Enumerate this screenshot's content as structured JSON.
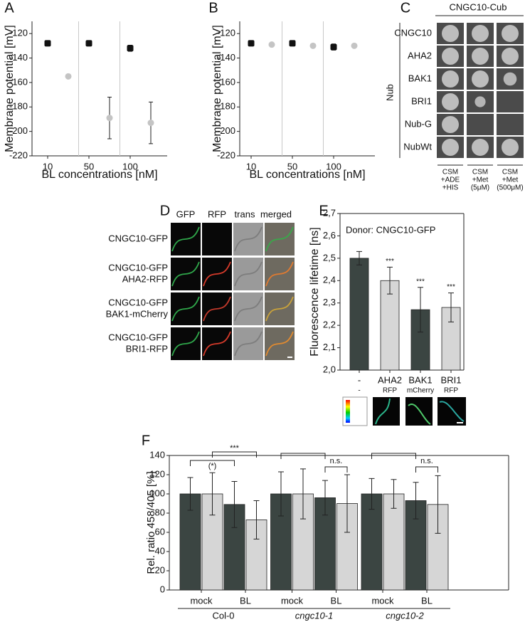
{
  "chart_data": [
    {
      "panel": "A",
      "type": "scatter",
      "ylabel": "Membrane potential [mV]",
      "xlabel": "BL concentrations [nM]",
      "categories": [
        "10",
        null,
        "50",
        null,
        "100",
        null
      ],
      "series": [
        {
          "color": "#111111",
          "values": [
            -128,
            null,
            -128,
            null,
            -132,
            null
          ],
          "errors": [
            1.5,
            null,
            1.5,
            null,
            2.5,
            null
          ]
        },
        {
          "color": "#c4c4c4",
          "values": [
            null,
            -155,
            null,
            -189,
            null,
            -193
          ],
          "errors": [
            null,
            1.5,
            null,
            17,
            null,
            17
          ]
        }
      ],
      "ylim": [
        -220,
        -110
      ],
      "yticks": [
        -120,
        -140,
        -160,
        -180,
        -200,
        -220
      ]
    },
    {
      "panel": "B",
      "type": "scatter",
      "ylabel": "Membrane potential [mV]",
      "xlabel": "BL concentrations [nM]",
      "categories": [
        "10",
        null,
        "50",
        null,
        "100",
        null
      ],
      "series": [
        {
          "color": "#111111",
          "values": [
            -128,
            null,
            -128,
            null,
            -131,
            null
          ],
          "errors": [
            1.5,
            null,
            1.5,
            null,
            2.5,
            null
          ]
        },
        {
          "color": "#c4c4c4",
          "values": [
            null,
            -129,
            null,
            -130,
            null,
            -130
          ],
          "errors": [
            null,
            1,
            null,
            1,
            null,
            1
          ]
        }
      ],
      "ylim": [
        -220,
        -110
      ],
      "yticks": [
        -120,
        -140,
        -160,
        -180,
        -200,
        -220
      ]
    },
    {
      "panel": "E",
      "type": "bar",
      "ylabel": "Fluorescence lifetime [ns]",
      "annotation": "Donor: CNGC10-GFP",
      "categories": [
        "-",
        "AHA2",
        "BAK1",
        "BRI1"
      ],
      "sublabels": [
        "-",
        "RFP",
        "mCherry",
        "RFP"
      ],
      "values": [
        2.5,
        2.4,
        2.27,
        2.28
      ],
      "errors": [
        0.03,
        0.06,
        0.1,
        0.065
      ],
      "colors": [
        "#3b4542",
        "#d6d6d6",
        "#3b4542",
        "#d6d6d6"
      ],
      "significance": [
        null,
        "***",
        "***",
        "***"
      ],
      "ylim": [
        2.0,
        2.7
      ],
      "yticks": [
        {
          "value": 2.0,
          "label": "2,0"
        },
        {
          "value": 2.1,
          "label": "2,1"
        },
        {
          "value": 2.2,
          "label": "2,2"
        },
        {
          "value": 2.3,
          "label": "2,3"
        },
        {
          "value": 2.4,
          "label": "2,4"
        },
        {
          "value": 2.5,
          "label": "2,5"
        },
        {
          "value": 2.6,
          "label": "2,6"
        },
        {
          "value": 2.7,
          "label": "2,7"
        }
      ]
    },
    {
      "panel": "F",
      "type": "bar",
      "ylabel": "Rel. ratio 458/405 [%]",
      "categories": [
        "mock",
        "BL",
        "mock",
        "BL",
        "mock",
        "BL"
      ],
      "groups": [
        "Col-0",
        "cngc10-1",
        "cngc10-2"
      ],
      "series": [
        {
          "color": "#3b4542",
          "values": [
            100,
            89,
            100,
            96,
            100,
            93
          ],
          "errors": [
            17,
            24,
            23,
            18,
            16,
            19
          ]
        },
        {
          "color": "#d6d6d6",
          "values": [
            100,
            73,
            100,
            90,
            100,
            89
          ],
          "errors": [
            22,
            20,
            26,
            30,
            15,
            30
          ]
        }
      ],
      "annotations": [
        "(*)",
        "***",
        "n.s.",
        "n.s."
      ],
      "ylim": [
        0,
        140
      ],
      "yticks": [
        0,
        20,
        40,
        60,
        80,
        100,
        120,
        140
      ]
    }
  ],
  "yeast_panel": {
    "panel": "C",
    "header": "CNGC10-Cub",
    "row_group": "Nub",
    "rows": [
      "CNGC10",
      "AHA2",
      "BAK1",
      "BRI1",
      "Nub-G",
      "NubWt"
    ],
    "columns": [
      [
        "CSM",
        "+ADE",
        "+HIS"
      ],
      [
        "CSM",
        "+Met",
        "(5μM)"
      ],
      [
        "CSM",
        "+Met",
        "(500μM)"
      ]
    ]
  },
  "microscopy_panel": {
    "panel": "D",
    "columns": [
      "GFP",
      "RFP",
      "trans",
      "merged"
    ],
    "rows": [
      [
        "CNGC10-GFP"
      ],
      [
        "CNGC10-GFP",
        "AHA2-RFP"
      ],
      [
        "CNGC10-GFP",
        "BAK1-mCherry"
      ],
      [
        "CNGC10-GFP",
        "BRI1-RFP"
      ]
    ]
  }
}
